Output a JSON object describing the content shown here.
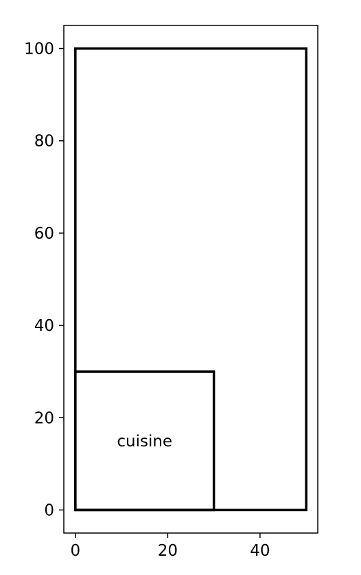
{
  "chart_data": {
    "type": "floor_plan",
    "title": "",
    "xlabel": "",
    "ylabel": "",
    "xlim": [
      -2.5,
      52.5
    ],
    "ylim": [
      -5,
      105
    ],
    "x_ticks": [
      0,
      20,
      40
    ],
    "y_ticks": [
      0,
      20,
      40,
      60,
      80,
      100
    ],
    "grid": false,
    "rectangles": [
      {
        "x": 0,
        "y": 0,
        "width": 50,
        "height": 100,
        "label": ""
      },
      {
        "x": 0,
        "y": 0,
        "width": 30,
        "height": 30,
        "label": "cuisine"
      }
    ],
    "line_color": "#000000"
  }
}
